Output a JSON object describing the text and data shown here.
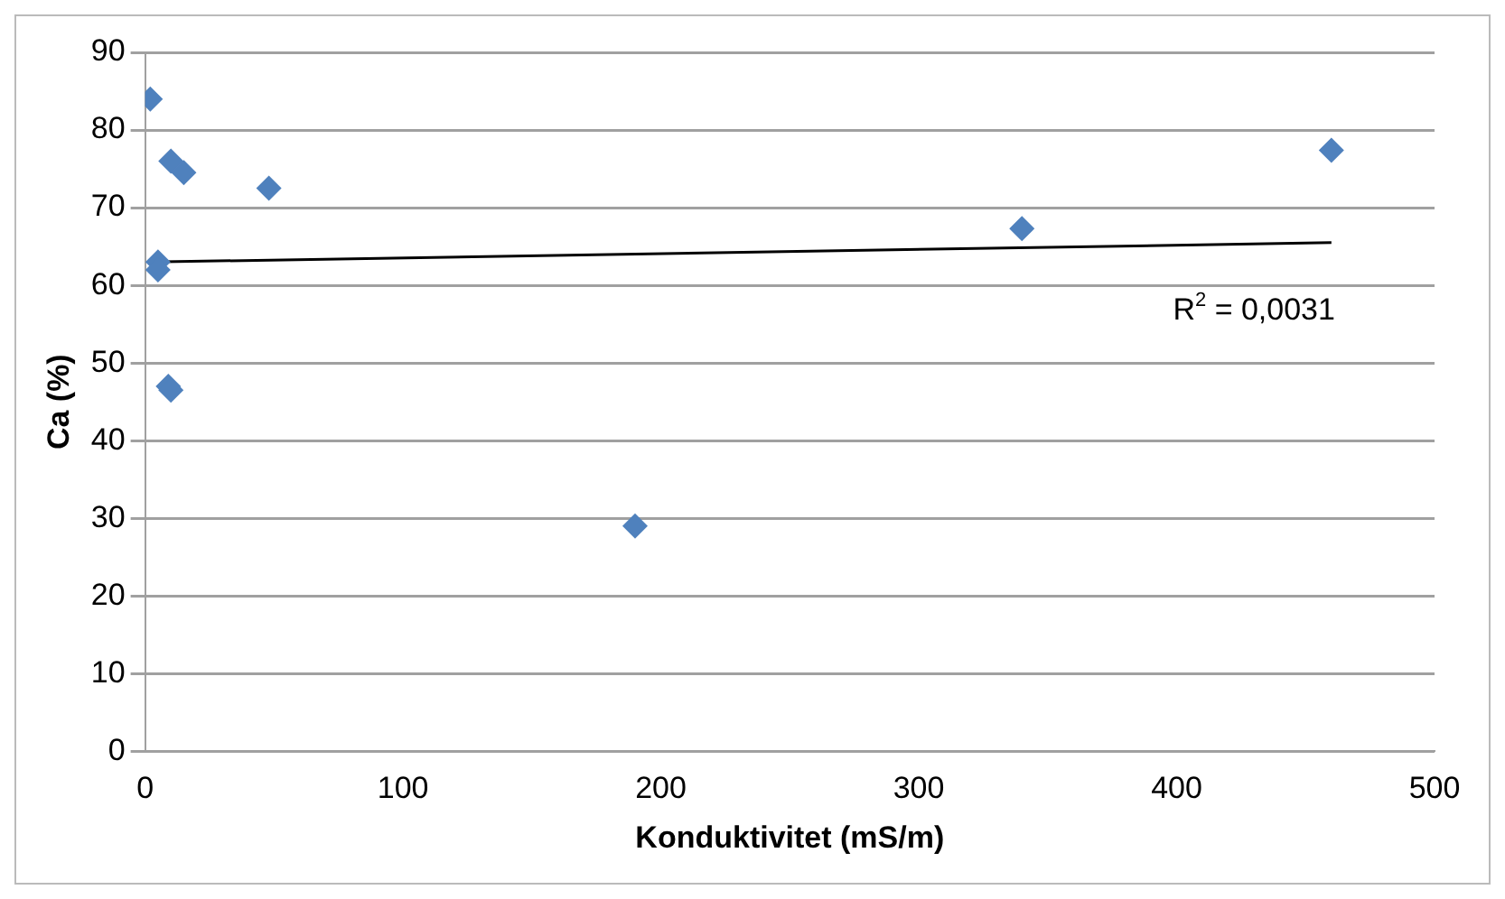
{
  "chart_data": {
    "type": "scatter",
    "xlabel": "Konduktivitet (mS/m)",
    "ylabel": "Ca (%)",
    "series": [
      {
        "color": "#4f81bd",
        "x": [
          2,
          10,
          15,
          48,
          5,
          5,
          9,
          10,
          190,
          340,
          460
        ],
        "values": [
          84,
          76,
          74.5,
          72.5,
          63,
          62,
          47,
          46.5,
          29,
          67.3,
          77.4
        ],
        "marker": "diamond"
      },
      {
        "type": "line",
        "color": "#000000",
        "x": [
          2,
          460
        ],
        "values": [
          63,
          65.5
        ],
        "marker": "none"
      }
    ],
    "xlim": [
      0,
      500
    ],
    "xticks": [
      0,
      100,
      200,
      300,
      400,
      500
    ],
    "ylim": [
      0,
      90
    ],
    "yticks": [
      0,
      10,
      20,
      30,
      40,
      50,
      60,
      70,
      80,
      90
    ],
    "grid": "y",
    "legend": false,
    "annotations": [
      "R$^{2}$ = 0,0031"
    ]
  }
}
